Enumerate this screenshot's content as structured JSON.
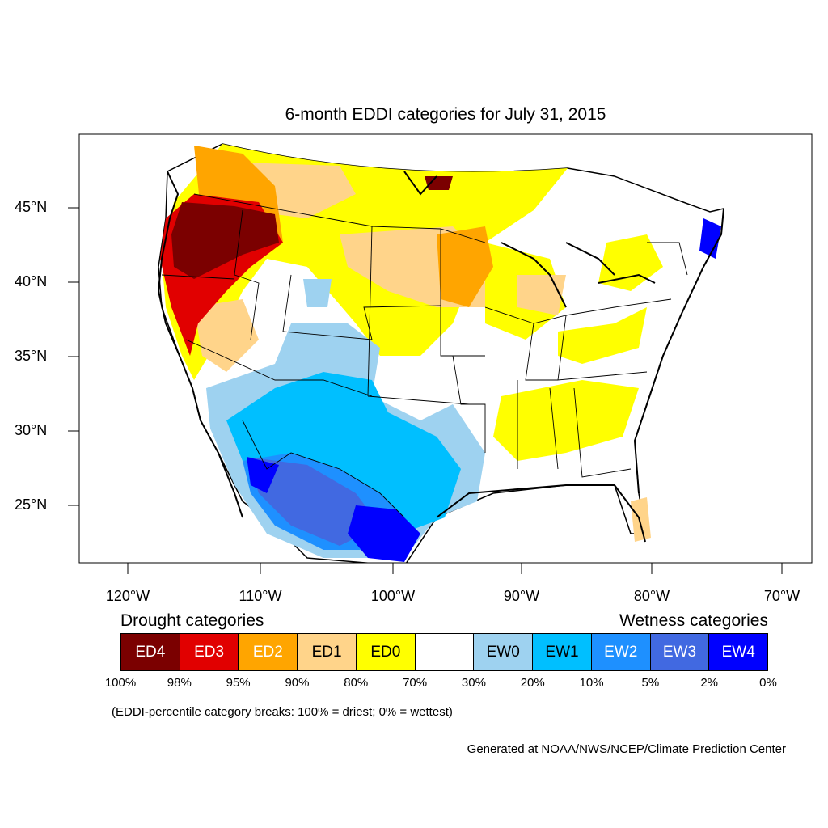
{
  "title": "6-month EDDI categories for July 31, 2015",
  "map": {
    "lat_ticks": [
      "45°N",
      "40°N",
      "35°N",
      "30°N",
      "25°N"
    ],
    "lon_ticks": [
      "120°W",
      "110°W",
      "100°W",
      "90°W",
      "80°W",
      "70°W"
    ]
  },
  "legend": {
    "drought_heading": "Drought categories",
    "wetness_heading": "Wetness categories",
    "categories": [
      {
        "label": "ED4",
        "color": "#7b0000",
        "text_color": "#ffffff"
      },
      {
        "label": "ED3",
        "color": "#e10000",
        "text_color": "#ffffff"
      },
      {
        "label": "ED2",
        "color": "#ffa500",
        "text_color": "#ffffff"
      },
      {
        "label": "ED1",
        "color": "#ffd48a",
        "text_color": "#000000"
      },
      {
        "label": "ED0",
        "color": "#ffff00",
        "text_color": "#000000"
      },
      {
        "label": "",
        "color": "#ffffff",
        "text_color": "#000000"
      },
      {
        "label": "EW0",
        "color": "#9ed2f0",
        "text_color": "#000000"
      },
      {
        "label": "EW1",
        "color": "#00bfff",
        "text_color": "#000000"
      },
      {
        "label": "EW2",
        "color": "#1e90ff",
        "text_color": "#ffffff"
      },
      {
        "label": "EW3",
        "color": "#4169e1",
        "text_color": "#ffffff"
      },
      {
        "label": "EW4",
        "color": "#0000ff",
        "text_color": "#ffffff"
      }
    ],
    "breaks": [
      "100%",
      "98%",
      "95%",
      "90%",
      "80%",
      "70%",
      "30%",
      "20%",
      "10%",
      "5%",
      "2%",
      "0%"
    ],
    "note": "(EDDI-percentile category breaks: 100% = driest; 0% = wettest)"
  },
  "credit": "Generated at NOAA/NWS/NCEP/Climate Prediction Center"
}
